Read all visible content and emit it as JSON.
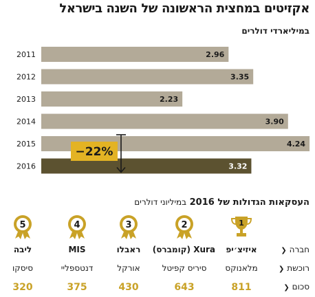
{
  "header": {
    "title": "אקזיטים במחצית הראשונה של השנה בישראל",
    "subtitle": "במיליארדי דולרים"
  },
  "chart_data": {
    "type": "bar",
    "orientation": "horizontal",
    "categories": [
      "2011",
      "2012",
      "2013",
      "2014",
      "2015",
      "2016"
    ],
    "values": [
      2.96,
      3.35,
      2.23,
      3.9,
      4.24,
      3.32
    ],
    "value_labels": [
      "2.96",
      "3.35",
      "2.23",
      "3.90",
      "4.24",
      "3.32"
    ],
    "xlim": [
      0,
      4.5
    ],
    "bar_color": "#b3aa98",
    "highlight_color": "#5c5230",
    "highlight_category": "2016",
    "annotation": {
      "text": "−22%",
      "color": "#e3b324",
      "from": "2015",
      "to": "2016"
    },
    "grid": false,
    "legend": "none"
  },
  "deals": {
    "title": "העסקאות הגדולות של 2016",
    "title_sub": "במיליוני דולרים",
    "row_labels": {
      "company": "חברה",
      "buyer": "רוכשת",
      "amount": "סכום"
    },
    "items": [
      {
        "rank": "1",
        "icon": "trophy-icon",
        "company": "איזיצ׳יפ",
        "buyer": "מלאנוקס",
        "amount": "811"
      },
      {
        "rank": "2",
        "icon": "medal-icon",
        "company": "Xura (קומברס)",
        "buyer": "סיריס קפיטל",
        "amount": "643"
      },
      {
        "rank": "3",
        "icon": "medal-icon",
        "company": "ראבלו",
        "buyer": "אורקל",
        "amount": "430"
      },
      {
        "rank": "4",
        "icon": "medal-icon",
        "company": "MIS",
        "buyer": "דנטספליי",
        "amount": "375"
      },
      {
        "rank": "5",
        "icon": "medal-icon",
        "company": "ליבה",
        "buyer": "סיסקו",
        "amount": "320"
      }
    ],
    "accent": "#c9a227"
  }
}
